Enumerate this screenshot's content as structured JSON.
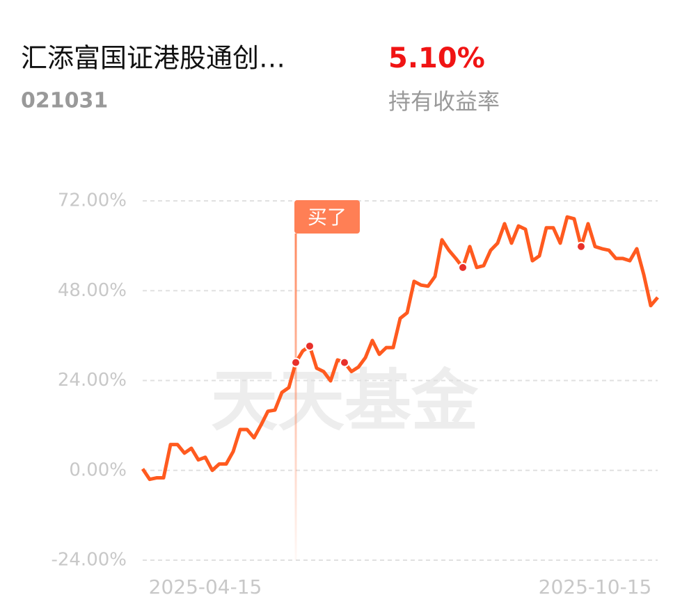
{
  "header": {
    "fund_name": "汇添富国证港股通创…",
    "fund_code": "021031",
    "return_value": "5.10%",
    "return_label": "持有收益率"
  },
  "chart_data": {
    "type": "line",
    "watermark": "天天基金",
    "color": "#ff5a1f",
    "marker_color": "#e8302a",
    "grid": true,
    "buy_label": "买了",
    "categories": [
      null,
      null,
      null,
      null,
      null,
      null,
      null,
      null,
      null,
      "2025-04-15",
      null,
      null,
      null,
      null,
      null,
      null,
      null,
      null,
      null,
      null,
      null,
      null,
      null,
      null,
      null,
      null,
      null,
      null,
      null,
      null,
      null,
      null,
      null,
      null,
      null,
      null,
      null,
      null,
      null,
      null,
      null,
      null,
      null,
      null,
      null,
      null,
      null,
      null,
      null,
      null,
      null,
      null,
      null,
      null,
      null,
      null,
      null,
      null,
      null,
      null,
      null,
      null,
      null,
      null,
      null,
      "2025-10-15",
      null,
      null,
      null,
      null,
      null,
      null,
      null,
      null,
      null
    ],
    "values": [
      0.4,
      -2.4,
      -2.0,
      -2.0,
      6.9,
      6.9,
      4.6,
      5.9,
      2.8,
      3.5,
      0,
      1.7,
      1.7,
      5.0,
      10.9,
      10.9,
      8.7,
      12.1,
      15.8,
      16.1,
      20.8,
      22.1,
      28.8,
      31.9,
      33.2,
      27.3,
      26.4,
      23.9,
      29.5,
      28.8,
      26.4,
      27.6,
      30.1,
      34.7,
      31.0,
      32.8,
      32.8,
      40.6,
      42.1,
      50.5,
      49.5,
      49.2,
      51.8,
      61.6,
      58.8,
      56.6,
      54.2,
      59.8,
      54.2,
      54.7,
      58.8,
      60.7,
      65.9,
      60.7,
      65.3,
      64.4,
      56.0,
      57.3,
      64.8,
      64.8,
      60.7,
      67.7,
      67.2,
      59.8,
      65.9,
      59.8,
      59.2,
      58.8,
      56.6,
      56.6,
      56.0,
      59.2,
      52.3,
      44.0,
      46.2
    ],
    "markers": [
      null,
      null,
      null,
      null,
      null,
      null,
      null,
      null,
      null,
      null,
      null,
      null,
      null,
      null,
      null,
      null,
      null,
      null,
      null,
      null,
      null,
      null,
      28.8,
      null,
      33.2,
      null,
      null,
      null,
      null,
      28.8,
      null,
      null,
      null,
      null,
      null,
      null,
      null,
      null,
      null,
      null,
      null,
      null,
      null,
      null,
      null,
      null,
      54.2,
      null,
      null,
      null,
      null,
      null,
      null,
      null,
      null,
      null,
      null,
      null,
      null,
      null,
      null,
      null,
      null,
      59.8,
      null,
      null,
      null,
      null,
      null,
      null,
      null,
      null,
      null,
      null,
      null
    ],
    "ylim": [
      -24,
      72
    ],
    "yticks": [
      {
        "value": -24,
        "label": "-24.00%"
      },
      {
        "value": 0,
        "label": "0.00%"
      },
      {
        "value": 24,
        "label": "24.00%"
      },
      {
        "value": 48,
        "label": "48.00%"
      },
      {
        "value": 72,
        "label": "72.00%"
      }
    ]
  }
}
